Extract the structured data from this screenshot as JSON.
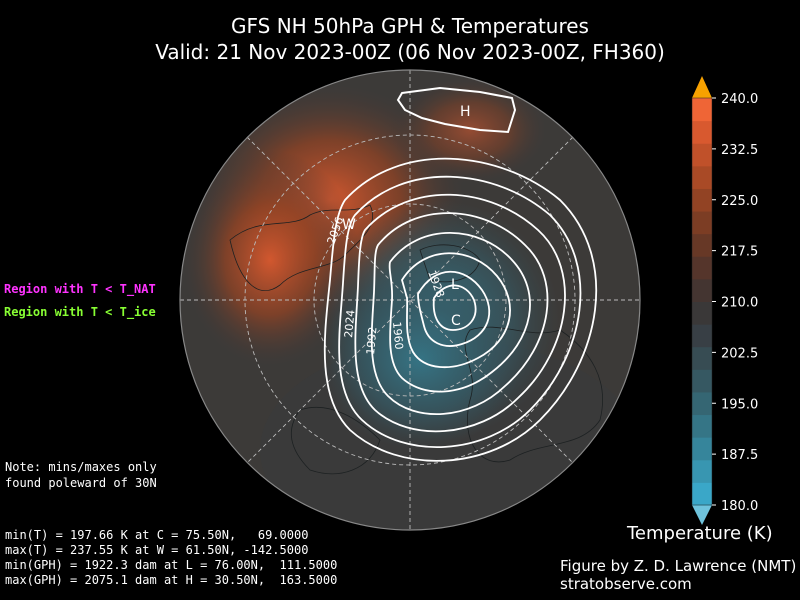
{
  "title": {
    "line1": "GFS NH 50hPa GPH & Temperatures",
    "line2": "Valid: 21 Nov 2023-00Z  (06 Nov 2023-00Z, FH360)"
  },
  "legend": {
    "nat": "Region with T < T_NAT",
    "ice": "Region with T < T_ice"
  },
  "note": {
    "line1": "Note: mins/maxes only",
    "line2": "found poleward of 30N"
  },
  "stats": [
    "min(T) = 197.66 K at C = 75.50N,   69.0000",
    "max(T) = 237.55 K at W = 61.50N, -142.5000",
    "min(GPH) = 1922.3 dam at L = 76.00N,  111.5000",
    "max(GPH) = 2075.1 dam at H = 30.50N,  163.5000"
  ],
  "colorbar": {
    "title": "Temperature (K)",
    "min": 180.0,
    "max": 240.0,
    "ticks": [
      "240.0",
      "232.5",
      "225.0",
      "217.5",
      "210.0",
      "202.5",
      "195.0",
      "187.5",
      "180.0"
    ],
    "colors": [
      "#3aa7c8",
      "#3896b1",
      "#36859b",
      "#357586",
      "#356673",
      "#365862",
      "#374c53",
      "#383f45",
      "#3a3838",
      "#443531",
      "#55352b",
      "#673826",
      "#7c3d24",
      "#924324",
      "#a94a26",
      "#c0512a",
      "#d8592f",
      "#ef6536"
    ],
    "extend_low_color": "#6fc3dc",
    "extend_high_color": "#f7a100"
  },
  "map": {
    "contour_labels": [
      "2056",
      "2024",
      "1992",
      "1960",
      "1928"
    ],
    "markers": {
      "H": "H",
      "W": "W",
      "L": "L",
      "C": "C"
    },
    "land_color": "#2a2f30"
  },
  "credit": {
    "line1": "Figure by Z. D. Lawrence (NMT)",
    "line2": "stratobserve.com"
  }
}
